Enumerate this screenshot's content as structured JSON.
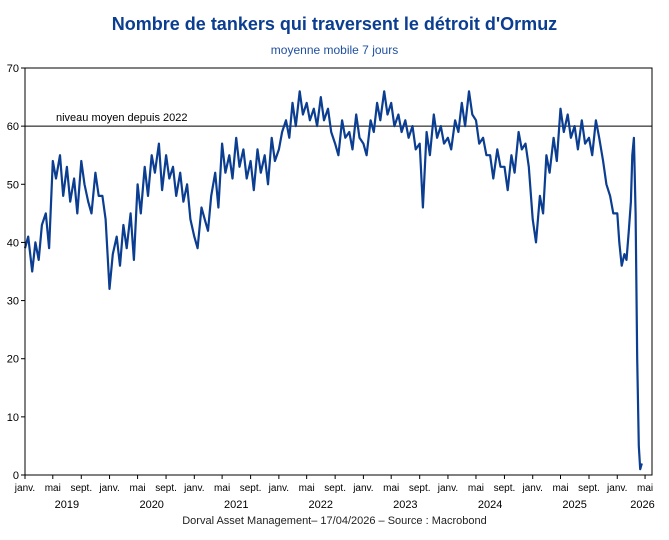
{
  "title": "Nombre de tankers qui traversent le détroit d'Ormuz",
  "subtitle": "moyenne mobile 7 jours",
  "footer": "Dorval Asset Management– 17/04/2026   –   Source : Macrobond",
  "colors": {
    "line": "#0b3d91",
    "title": "#0b3d91",
    "reference": "#000000"
  },
  "chart_data": {
    "type": "line",
    "title": "Nombre de tankers qui traversent le détroit d'Ormuz",
    "subtitle": "moyenne mobile 7 jours",
    "xlabel": "",
    "ylabel": "",
    "ylim": [
      0,
      70
    ],
    "xlim": [
      "2019-01-01",
      "2026-05-31"
    ],
    "grid": false,
    "y_ticks": [
      "0",
      "10",
      "20",
      "30",
      "40",
      "50",
      "60",
      "70"
    ],
    "x_tick_labels": [
      {
        "date": "2019-01-01",
        "label": "janv."
      },
      {
        "date": "2019-05-01",
        "label": "mai"
      },
      {
        "date": "2019-09-01",
        "label": "sept."
      },
      {
        "date": "2020-01-01",
        "label": "janv."
      },
      {
        "date": "2020-05-01",
        "label": "mai"
      },
      {
        "date": "2020-09-01",
        "label": "sept."
      },
      {
        "date": "2021-01-01",
        "label": "janv."
      },
      {
        "date": "2021-05-01",
        "label": "mai"
      },
      {
        "date": "2021-09-01",
        "label": "sept."
      },
      {
        "date": "2022-01-01",
        "label": "janv."
      },
      {
        "date": "2022-05-01",
        "label": "mai"
      },
      {
        "date": "2022-09-01",
        "label": "sept."
      },
      {
        "date": "2023-01-01",
        "label": "janv."
      },
      {
        "date": "2023-05-01",
        "label": "mai"
      },
      {
        "date": "2023-09-01",
        "label": "sept."
      },
      {
        "date": "2024-01-01",
        "label": "janv."
      },
      {
        "date": "2024-05-01",
        "label": "mai"
      },
      {
        "date": "2024-09-01",
        "label": "sept."
      },
      {
        "date": "2025-01-01",
        "label": "janv."
      },
      {
        "date": "2025-05-01",
        "label": "mai"
      },
      {
        "date": "2025-09-01",
        "label": "sept."
      },
      {
        "date": "2026-01-01",
        "label": "janv."
      },
      {
        "date": "2026-05-01",
        "label": "mai"
      }
    ],
    "year_labels": [
      {
        "date": "2019-07-01",
        "label": "2019"
      },
      {
        "date": "2020-07-01",
        "label": "2020"
      },
      {
        "date": "2021-07-01",
        "label": "2021"
      },
      {
        "date": "2022-07-01",
        "label": "2022"
      },
      {
        "date": "2023-07-01",
        "label": "2023"
      },
      {
        "date": "2024-07-01",
        "label": "2024"
      },
      {
        "date": "2025-07-01",
        "label": "2025"
      },
      {
        "date": "2026-04-20",
        "label": "2026"
      }
    ],
    "reference_line": {
      "value": 60,
      "label": "niveau moyen depuis 2022"
    },
    "series": [
      {
        "name": "",
        "x": [
          "2019-01-01",
          "2019-01-15",
          "2019-02-01",
          "2019-02-15",
          "2019-03-01",
          "2019-03-15",
          "2019-04-01",
          "2019-04-15",
          "2019-05-01",
          "2019-05-15",
          "2019-06-01",
          "2019-06-15",
          "2019-07-01",
          "2019-07-15",
          "2019-08-01",
          "2019-08-15",
          "2019-09-01",
          "2019-09-15",
          "2019-10-01",
          "2019-10-15",
          "2019-11-01",
          "2019-11-15",
          "2019-12-01",
          "2019-12-15",
          "2020-01-01",
          "2020-01-15",
          "2020-02-01",
          "2020-02-15",
          "2020-03-01",
          "2020-03-15",
          "2020-04-01",
          "2020-04-15",
          "2020-05-01",
          "2020-05-15",
          "2020-06-01",
          "2020-06-15",
          "2020-07-01",
          "2020-07-15",
          "2020-08-01",
          "2020-08-15",
          "2020-09-01",
          "2020-09-15",
          "2020-10-01",
          "2020-10-15",
          "2020-11-01",
          "2020-11-15",
          "2020-12-01",
          "2020-12-15",
          "2021-01-01",
          "2021-01-15",
          "2021-02-01",
          "2021-02-15",
          "2021-03-01",
          "2021-03-15",
          "2021-04-01",
          "2021-04-15",
          "2021-05-01",
          "2021-05-15",
          "2021-06-01",
          "2021-06-15",
          "2021-07-01",
          "2021-07-15",
          "2021-08-01",
          "2021-08-15",
          "2021-09-01",
          "2021-09-15",
          "2021-10-01",
          "2021-10-15",
          "2021-11-01",
          "2021-11-15",
          "2021-12-01",
          "2021-12-15",
          "2022-01-01",
          "2022-01-15",
          "2022-02-01",
          "2022-02-15",
          "2022-03-01",
          "2022-03-15",
          "2022-04-01",
          "2022-04-15",
          "2022-05-01",
          "2022-05-15",
          "2022-06-01",
          "2022-06-15",
          "2022-07-01",
          "2022-07-15",
          "2022-08-01",
          "2022-08-15",
          "2022-09-01",
          "2022-09-15",
          "2022-10-01",
          "2022-10-15",
          "2022-11-01",
          "2022-11-15",
          "2022-12-01",
          "2022-12-15",
          "2023-01-01",
          "2023-01-15",
          "2023-02-01",
          "2023-02-15",
          "2023-03-01",
          "2023-03-15",
          "2023-04-01",
          "2023-04-15",
          "2023-05-01",
          "2023-05-15",
          "2023-06-01",
          "2023-06-15",
          "2023-07-01",
          "2023-07-15",
          "2023-08-01",
          "2023-08-15",
          "2023-09-01",
          "2023-09-15",
          "2023-10-01",
          "2023-10-15",
          "2023-11-01",
          "2023-11-15",
          "2023-12-01",
          "2023-12-15",
          "2024-01-01",
          "2024-01-15",
          "2024-02-01",
          "2024-02-15",
          "2024-03-01",
          "2024-03-15",
          "2024-04-01",
          "2024-04-15",
          "2024-05-01",
          "2024-05-15",
          "2024-06-01",
          "2024-06-15",
          "2024-07-01",
          "2024-07-15",
          "2024-08-01",
          "2024-08-15",
          "2024-09-01",
          "2024-09-15",
          "2024-10-01",
          "2024-10-15",
          "2024-11-01",
          "2024-11-15",
          "2024-12-01",
          "2024-12-15",
          "2025-01-01",
          "2025-01-15",
          "2025-02-01",
          "2025-02-15",
          "2025-03-01",
          "2025-03-15",
          "2025-04-01",
          "2025-04-15",
          "2025-05-01",
          "2025-05-15",
          "2025-06-01",
          "2025-06-15",
          "2025-07-01",
          "2025-07-15",
          "2025-08-01",
          "2025-08-15",
          "2025-09-01",
          "2025-09-15",
          "2025-10-01",
          "2025-10-15",
          "2025-11-01",
          "2025-11-15",
          "2025-12-01",
          "2025-12-15",
          "2026-01-01",
          "2026-01-10",
          "2026-01-20",
          "2026-02-01",
          "2026-02-10",
          "2026-02-20",
          "2026-03-01",
          "2026-03-07",
          "2026-03-14",
          "2026-03-21",
          "2026-03-28",
          "2026-04-04",
          "2026-04-10",
          "2026-04-17"
        ],
        "values": [
          39,
          41,
          35,
          40,
          37,
          43,
          45,
          39,
          54,
          51,
          55,
          48,
          53,
          47,
          51,
          45,
          54,
          50,
          47,
          45,
          52,
          48,
          48,
          44,
          32,
          38,
          41,
          36,
          43,
          39,
          45,
          37,
          50,
          45,
          53,
          48,
          55,
          52,
          57,
          49,
          55,
          51,
          53,
          48,
          52,
          47,
          50,
          44,
          41,
          39,
          46,
          44,
          42,
          48,
          52,
          46,
          57,
          52,
          55,
          51,
          58,
          53,
          56,
          51,
          54,
          49,
          56,
          52,
          55,
          50,
          58,
          54,
          56,
          59,
          61,
          58,
          64,
          60,
          66,
          62,
          64,
          61,
          63,
          60,
          65,
          61,
          63,
          59,
          57,
          55,
          61,
          58,
          59,
          56,
          62,
          58,
          57,
          55,
          61,
          59,
          64,
          61,
          66,
          62,
          64,
          60,
          62,
          59,
          61,
          58,
          60,
          56,
          57,
          46,
          59,
          55,
          62,
          58,
          60,
          57,
          58,
          56,
          61,
          59,
          64,
          60,
          66,
          62,
          61,
          57,
          58,
          55,
          55,
          51,
          56,
          53,
          53,
          49,
          55,
          52,
          59,
          56,
          57,
          53,
          44,
          40,
          48,
          45,
          55,
          52,
          58,
          54,
          63,
          59,
          62,
          58,
          60,
          56,
          61,
          57,
          58,
          55,
          61,
          58,
          54,
          50,
          48,
          45,
          45,
          40,
          36,
          38,
          37,
          42,
          47,
          55,
          58,
          45,
          20,
          5,
          1,
          2
        ]
      }
    ]
  }
}
